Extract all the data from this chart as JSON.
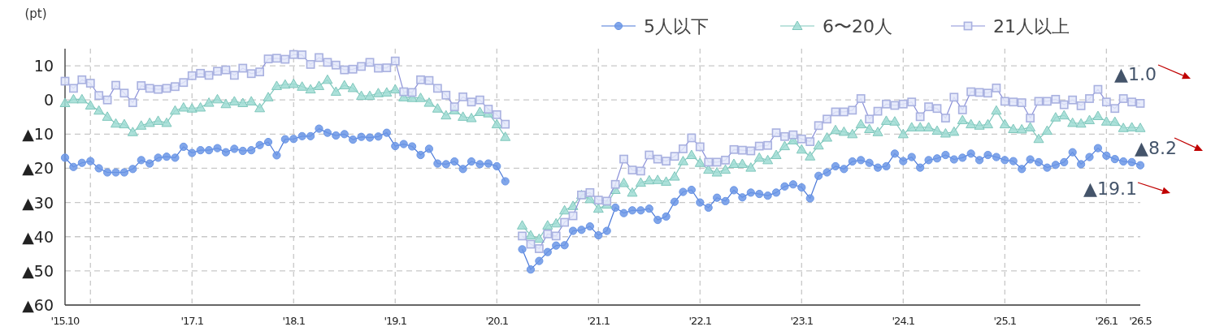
{
  "chart_data": {
    "type": "line",
    "ylabel": "(pt)",
    "x": [
      "2015-10",
      "2015-11",
      "2015-12",
      "2016-01",
      "2016-02",
      "2016-03",
      "2016-04",
      "2016-05",
      "2016-06",
      "2016-07",
      "2016-08",
      "2016-09",
      "2016-10",
      "2016-11",
      "2016-12",
      "2017-01",
      "2017-02",
      "2017-03",
      "2017-04",
      "2017-05",
      "2017-06",
      "2017-07",
      "2017-08",
      "2017-09",
      "2017-10",
      "2017-11",
      "2017-12",
      "2018-01",
      "2018-02",
      "2018-03",
      "2018-04",
      "2018-05",
      "2018-06",
      "2018-07",
      "2018-08",
      "2018-09",
      "2018-10",
      "2018-11",
      "2018-12",
      "2019-01",
      "2019-02",
      "2019-03",
      "2019-04",
      "2019-05",
      "2019-06",
      "2019-07",
      "2019-08",
      "2019-09",
      "2019-10",
      "2019-11",
      "2019-12",
      "2020-01",
      "2020-02",
      "2020-03",
      "2020-04",
      "2020-05",
      "2020-06",
      "2020-07",
      "2020-08",
      "2020-09",
      "2020-10",
      "2020-11",
      "2020-12",
      "2021-01",
      "2021-02",
      "2021-03",
      "2021-04",
      "2021-05",
      "2021-06",
      "2021-07",
      "2021-08",
      "2021-09",
      "2021-10",
      "2021-11",
      "2021-12",
      "2022-01",
      "2022-02",
      "2022-03",
      "2022-04",
      "2022-05",
      "2022-06",
      "2022-07",
      "2022-08",
      "2022-09",
      "2022-10",
      "2022-11",
      "2022-12",
      "2023-01",
      "2023-02",
      "2023-03",
      "2023-04",
      "2023-05",
      "2023-06",
      "2023-07",
      "2023-08",
      "2023-09",
      "2023-10",
      "2023-11",
      "2023-12",
      "2024-01",
      "2024-02",
      "2024-03",
      "2024-04",
      "2024-05",
      "2024-06",
      "2024-07",
      "2024-08",
      "2024-09",
      "2024-10",
      "2024-11",
      "2024-12",
      "2025-01",
      "2025-02",
      "2025-03",
      "2025-04",
      "2025-05",
      "2025-06",
      "2025-07",
      "2025-08",
      "2025-09",
      "2025-10",
      "2025-11",
      "2025-12",
      "2026-01",
      "2026-02",
      "2026-03",
      "2026-04",
      "2026-05"
    ],
    "series": [
      {
        "name": "5人以下",
        "color": "#6b96e6",
        "marker": "circle",
        "values": [
          -16.9,
          -19.6,
          -18.4,
          -17.9,
          -20,
          -21.2,
          -21.2,
          -21.2,
          -20.2,
          -17.6,
          -18.6,
          -16.9,
          -16.6,
          -16.9,
          -13.7,
          -15.5,
          -14.7,
          -14.7,
          -14.1,
          -15.3,
          -14.3,
          -14.9,
          -14.7,
          -13.2,
          -12.3,
          -16.2,
          -11.5,
          -11.4,
          -10.6,
          -10.6,
          -8.4,
          -9.6,
          -10.4,
          -10,
          -11.6,
          -10.8,
          -11,
          -10.7,
          -9.6,
          -13.5,
          -12.9,
          -13.6,
          -16.1,
          -14.3,
          -18.6,
          -18.8,
          -18,
          -20.2,
          -18,
          -18.8,
          -18.6,
          -19.4,
          -23.8,
          null,
          -43.7,
          -49.6,
          -47.1,
          -44.5,
          -42.6,
          -42.5,
          -38.3,
          -38,
          -37,
          -39.6,
          -38.3,
          -31.5,
          -33.1,
          -32.3,
          -32.3,
          -31.8,
          -35.1,
          -34.1,
          -29.8,
          -26.9,
          -26.3,
          -30,
          -31.5,
          -28.6,
          -29.6,
          -26.4,
          -28.5,
          -27.1,
          -27.5,
          -28,
          -27.1,
          -25.3,
          -24.7,
          -25.6,
          -28.8,
          -22.2,
          -21.2,
          -19.4,
          -20.2,
          -18,
          -17.6,
          -18.4,
          -19.8,
          -19.4,
          -15.7,
          -17.9,
          -16.7,
          -19.8,
          -17.6,
          -17.1,
          -16.1,
          -17.4,
          -16.9,
          -15.7,
          -17.6,
          -16.1,
          -16.7,
          -17.6,
          -17.9,
          -20.2,
          -17.4,
          -18.2,
          -19.8,
          -19,
          -18.2,
          -15.3,
          -18.8,
          -16.7,
          -14.1,
          -16.3,
          -17.3,
          -18,
          -18.2,
          -19.1
        ]
      },
      {
        "name": "6〜20人",
        "color": "#9fdcd3",
        "marker": "triangle",
        "values": [
          -0.9,
          0.2,
          0.2,
          -1.6,
          -3.1,
          -4.9,
          -6.9,
          -7.1,
          -9.4,
          -7.5,
          -6.7,
          -6.1,
          -6.7,
          -3.1,
          -2.2,
          -2.5,
          -2.2,
          -0.8,
          0.2,
          -1.2,
          -0.4,
          -0.9,
          -0.4,
          -2.4,
          0.8,
          4.1,
          4.5,
          4.7,
          3.9,
          3.1,
          4.1,
          5.9,
          2.4,
          4.3,
          3.5,
          1.2,
          1.2,
          2,
          2.2,
          3.1,
          0.8,
          0.6,
          0.6,
          -0.8,
          -2.5,
          -4.5,
          -3,
          -4.9,
          -5.3,
          -3.5,
          -3.9,
          -7.1,
          -10.8,
          null,
          -36.7,
          -39.6,
          -40.6,
          -36.7,
          -36.1,
          -32.3,
          -31,
          -27.8,
          -29,
          -31.8,
          -30.6,
          -26.3,
          -24.3,
          -27.1,
          -24.2,
          -23.5,
          -23.4,
          -23.9,
          -22.4,
          -17.9,
          -16.1,
          -18.4,
          -20.4,
          -21.2,
          -20.4,
          -18.7,
          -18.7,
          -19.8,
          -16.9,
          -17.6,
          -16.1,
          -13.5,
          -11.8,
          -14.5,
          -16.5,
          -13.3,
          -11,
          -8.8,
          -9.3,
          -10,
          -7.1,
          -8.5,
          -9.4,
          -6.1,
          -6.3,
          -10,
          -8,
          -8,
          -8,
          -9,
          -9.8,
          -9.3,
          -5.9,
          -7.1,
          -7.5,
          -7.1,
          -3.1,
          -7.1,
          -8.5,
          -8.6,
          -8,
          -11.4,
          -9,
          -5.1,
          -4.5,
          -6.7,
          -6.9,
          -5.9,
          -4.7,
          -6.3,
          -6.4,
          -8.2,
          -8,
          -8.2
        ]
      },
      {
        "name": "21人以上",
        "color": "#a9b1e0",
        "marker": "square",
        "values": [
          5.5,
          3.4,
          5.9,
          4.9,
          1.3,
          0,
          4.3,
          2,
          -0.8,
          4.2,
          3.4,
          3.1,
          3.4,
          3.9,
          5.1,
          7.1,
          7.8,
          7.2,
          8.4,
          8.8,
          7.2,
          9.3,
          7.7,
          8.2,
          12,
          12.2,
          11.9,
          13.3,
          13.2,
          10.4,
          12.4,
          11,
          10.2,
          8.8,
          9,
          9.8,
          11,
          9.3,
          9.4,
          11.4,
          2.4,
          2.2,
          5.9,
          5.7,
          3.4,
          1.4,
          -2,
          0.9,
          -0.6,
          0,
          -2.7,
          -4.3,
          -7.1,
          null,
          -39.8,
          -42.2,
          -43.5,
          -39.2,
          -39.8,
          -35.8,
          -33.9,
          -27.8,
          -27.1,
          -29.3,
          -29.6,
          -24.7,
          -17.3,
          -20.5,
          -20.8,
          -16.1,
          -17.3,
          -17.9,
          -16.5,
          -14.3,
          -11.1,
          -13.7,
          -18.2,
          -18.2,
          -17.6,
          -14.5,
          -14.7,
          -14.9,
          -13.5,
          -13.3,
          -9.6,
          -10.7,
          -10.2,
          -11.4,
          -12.2,
          -7.5,
          -5.6,
          -3.5,
          -3.5,
          -3,
          0.4,
          -5.6,
          -3.3,
          -1.2,
          -1.6,
          -1.2,
          -0.6,
          -4.9,
          -2,
          -2.5,
          -5.3,
          0.8,
          -2.9,
          2.4,
          2.2,
          2,
          3.5,
          -0.4,
          -0.6,
          -0.8,
          -5.3,
          -0.4,
          -0.4,
          0.2,
          -1.4,
          0,
          -1.7,
          0.4,
          3.1,
          -0.6,
          -2.5,
          0.4,
          -0.6,
          -1.0
        ]
      }
    ],
    "xlim": [
      "2015-10",
      "2026-05"
    ],
    "xticks": [
      {
        "value": "2015-10",
        "label": "'15.10"
      },
      {
        "value": "2016-01",
        "label": null
      },
      {
        "value": "2017-01",
        "label": "'17.1"
      },
      {
        "value": "2018-01",
        "label": "'18.1"
      },
      {
        "value": "2019-01",
        "label": "'19.1"
      },
      {
        "value": "2020-01",
        "label": "'20.1"
      },
      {
        "value": "2021-01",
        "label": "'21.1"
      },
      {
        "value": "2022-01",
        "label": "'22.1"
      },
      {
        "value": "2023-01",
        "label": "'23.1"
      },
      {
        "value": "2024-01",
        "label": "'24.1"
      },
      {
        "value": "2025-01",
        "label": "'25.1"
      },
      {
        "value": "2026-01",
        "label": "'26.1"
      },
      {
        "value": "2026-05",
        "label": "'26.5"
      }
    ],
    "ylim": [
      -60,
      15
    ],
    "yticks": [
      10,
      0,
      {
        "value": -10,
        "label": "▲10"
      },
      {
        "value": -20,
        "label": "▲20"
      },
      {
        "value": -30,
        "label": "▲30"
      },
      {
        "value": -40,
        "label": "▲40"
      },
      {
        "value": -50,
        "label": "▲50"
      },
      {
        "value": -60,
        "label": "▲60"
      }
    ],
    "grid": true,
    "legend": "top right",
    "line_style": "solid",
    "annotations": [
      {
        "text": "▲1.0",
        "x": "2026-05",
        "y": -1.0
      },
      {
        "text": "▲8.2",
        "x": "2026-05",
        "y": -8.2
      },
      {
        "text": "▲19.1",
        "x": "2026-05",
        "y": -19.1
      }
    ]
  }
}
